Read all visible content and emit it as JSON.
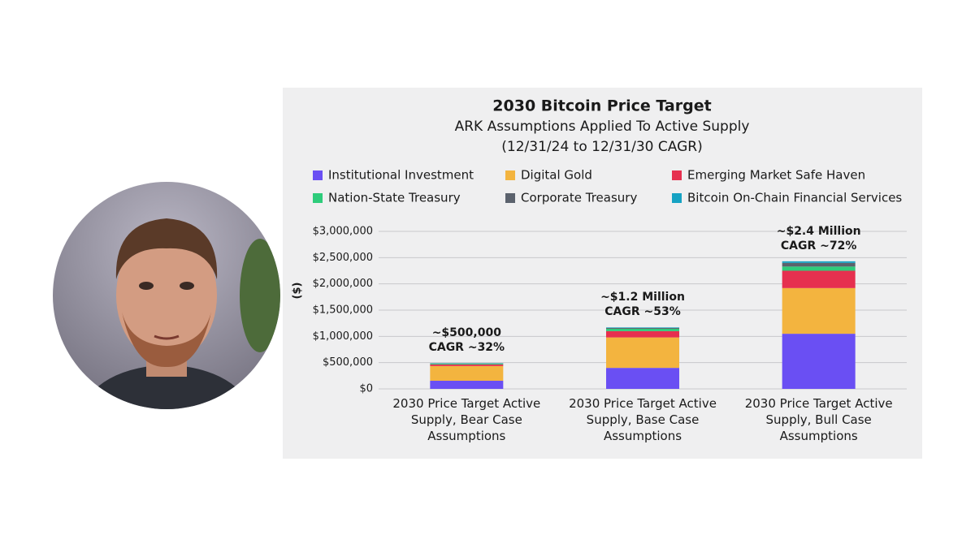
{
  "chart_data": {
    "type": "bar",
    "stacked": true,
    "title": "2030 Bitcoin Price Target",
    "subtitle": [
      "ARK Assumptions Applied To Active Supply",
      "(12/31/24 to 12/31/30 CAGR)"
    ],
    "y_label": "($)",
    "categories": [
      "2030 Price Target Active Supply, Bear Case Assumptions",
      "2030 Price Target Active Supply, Base Case Assumptions",
      "2030 Price Target Active Supply, Bull Case Assumptions"
    ],
    "annotations": [
      [
        "~$500,000",
        "CAGR ~32%"
      ],
      [
        "~$1.2 Million",
        "CAGR ~53%"
      ],
      [
        "~$2.4 Million",
        "CAGR ~72%"
      ]
    ],
    "series": [
      {
        "name": "Institutional Investment",
        "color": "#6a4ff3",
        "values": [
          155000,
          400000,
          1050000
        ]
      },
      {
        "name": "Digital Gold",
        "color": "#f3b43f",
        "values": [
          280000,
          580000,
          870000
        ]
      },
      {
        "name": "Emerging Market Safe Haven",
        "color": "#e6304f",
        "values": [
          30000,
          120000,
          330000
        ]
      },
      {
        "name": "Nation-State Treasury",
        "color": "#2ecc7b",
        "values": [
          15000,
          45000,
          80000
        ]
      },
      {
        "name": "Corporate Treasury",
        "color": "#5b626d",
        "values": [
          5000,
          15000,
          70000
        ]
      },
      {
        "name": "Bitcoin On-Chain Financial Services",
        "color": "#16a2c3",
        "values": [
          5000,
          10000,
          30000
        ]
      }
    ],
    "ylim": [
      0,
      3000000
    ],
    "yticks": [
      {
        "value": 0,
        "label": "$0"
      },
      {
        "value": 500000,
        "label": "$500,000"
      },
      {
        "value": 1000000,
        "label": "$1,000,000"
      },
      {
        "value": 1500000,
        "label": "$1,500,000"
      },
      {
        "value": 2000000,
        "label": "$2,000,000"
      },
      {
        "value": 2500000,
        "label": "$2,500,000"
      },
      {
        "value": 3000000,
        "label": "$3,000,000"
      }
    ],
    "grid": true
  }
}
